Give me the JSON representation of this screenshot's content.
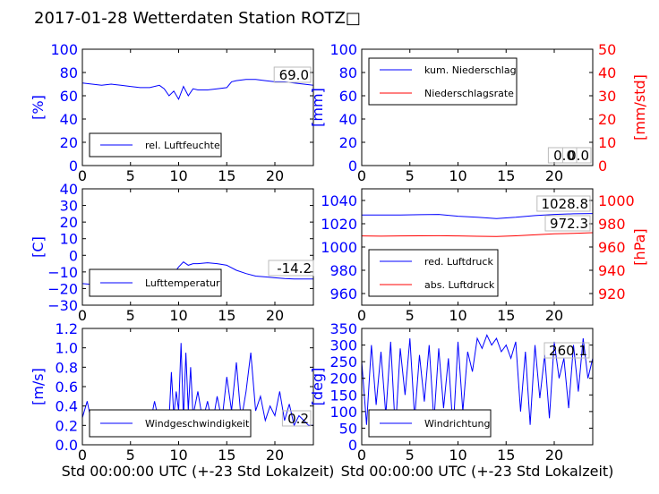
{
  "page": {
    "title": "2017-01-28 Wetterdaten Station ROTZ□"
  },
  "colors": {
    "primary": "#0000ff",
    "secondary": "#ff0000",
    "axis": "#000000"
  },
  "chart_data": [
    {
      "type": "line",
      "id": "humidity",
      "xlabel": "",
      "ylabel": "[%]",
      "xlim": [
        0,
        24
      ],
      "ylim": [
        0,
        100
      ],
      "xticks": [
        "0",
        "5",
        "10",
        "15",
        "20"
      ],
      "yticks": [
        "0",
        "20",
        "40",
        "60",
        "80",
        "100"
      ],
      "grid": false,
      "legend": "bottom-left",
      "annotations": [
        "69.0"
      ],
      "series": [
        {
          "name": "rel. Luftfeuchte",
          "color": "#0000ff",
          "axis": "left",
          "x": [
            0,
            1,
            2,
            3,
            4,
            5,
            6,
            7,
            8,
            8.5,
            9,
            9.5,
            10,
            10.5,
            11,
            11.5,
            12,
            13,
            14,
            15,
            15.5,
            16,
            17,
            18,
            19,
            20,
            21,
            22,
            23,
            24
          ],
          "values": [
            71,
            70,
            69,
            70,
            69,
            68,
            67,
            67,
            69,
            66,
            60,
            64,
            57,
            68,
            60,
            66,
            65,
            65,
            66,
            67,
            72,
            73,
            74,
            74,
            73,
            72,
            72,
            71,
            70,
            69
          ]
        }
      ]
    },
    {
      "type": "line",
      "id": "precipitation",
      "xlabel": "",
      "ylabel": "[mm]",
      "y2label": "[mm/std]",
      "xlim": [
        0,
        24
      ],
      "ylim": [
        0,
        100
      ],
      "y2lim": [
        0,
        50
      ],
      "xticks": [
        "0",
        "5",
        "10",
        "15",
        "20"
      ],
      "yticks": [
        "0",
        "20",
        "40",
        "60",
        "80",
        "100"
      ],
      "y2ticks": [
        "0",
        "10",
        "20",
        "30",
        "40",
        "50"
      ],
      "grid": false,
      "legend": "top-left",
      "annotations": [
        "0.0",
        "0.0"
      ],
      "series": [
        {
          "name": "kum. Niederschlag",
          "color": "#0000ff",
          "axis": "left",
          "x": [
            0,
            24
          ],
          "values": [
            0,
            0
          ]
        },
        {
          "name": "Niederschlagsrate",
          "color": "#ff0000",
          "axis": "right",
          "x": [
            0,
            24
          ],
          "values": [
            0,
            0
          ]
        }
      ]
    },
    {
      "type": "line",
      "id": "temperature",
      "xlabel": "",
      "ylabel": "[C]",
      "xlim": [
        0,
        24
      ],
      "ylim": [
        -30,
        40
      ],
      "xticks": [
        "0",
        "5",
        "10",
        "15",
        "20"
      ],
      "yticks": [
        "−30",
        "−20",
        "−10",
        "0",
        "10",
        "20",
        "30",
        "40"
      ],
      "grid": false,
      "legend": "bottom-left",
      "annotations": [
        "-14.2"
      ],
      "series": [
        {
          "name": "Lufttemperatur",
          "color": "#0000ff",
          "axis": "left",
          "x": [
            0,
            2,
            4,
            6,
            7,
            8,
            8.5,
            9,
            9.5,
            10,
            10.5,
            11,
            11.5,
            12,
            13,
            14,
            15,
            16,
            17,
            18,
            19,
            20,
            21,
            22,
            23,
            24
          ],
          "values": [
            -17,
            -18,
            -18.5,
            -18.5,
            -18,
            -17,
            -15.5,
            -14,
            -11,
            -7,
            -4,
            -6,
            -5,
            -5,
            -4.5,
            -5,
            -6,
            -9,
            -11,
            -12.5,
            -13,
            -13.5,
            -14,
            -14.2,
            -14.2,
            -14.2
          ]
        }
      ]
    },
    {
      "type": "line",
      "id": "pressure",
      "xlabel": "",
      "ylabel": "",
      "y2label": "[hPa]",
      "xlim": [
        0,
        24
      ],
      "ylim": [
        950,
        1050
      ],
      "y2lim": [
        910,
        1010
      ],
      "xticks": [
        "0",
        "5",
        "10",
        "15",
        "20"
      ],
      "yticks": [
        "960",
        "980",
        "1000",
        "1020",
        "1040"
      ],
      "y2ticks": [
        "920",
        "940",
        "960",
        "980",
        "1000"
      ],
      "grid": false,
      "legend": "bottom-left",
      "annotations": [
        "1028.8",
        "972.3"
      ],
      "series": [
        {
          "name": "red. Luftdruck",
          "color": "#0000ff",
          "axis": "left",
          "x": [
            0,
            2,
            4,
            6,
            8,
            10,
            12,
            14,
            16,
            18,
            20,
            22,
            24
          ],
          "values": [
            1027.5,
            1027.5,
            1027.5,
            1027.8,
            1028,
            1026.5,
            1025.5,
            1024.5,
            1025.5,
            1027,
            1028,
            1028.5,
            1028.8
          ]
        },
        {
          "name": "abs. Luftdruck",
          "color": "#ff0000",
          "axis": "right",
          "x": [
            0,
            2,
            4,
            6,
            8,
            10,
            12,
            14,
            16,
            18,
            20,
            22,
            24
          ],
          "values": [
            969.5,
            969.3,
            969.5,
            969.6,
            969.7,
            969.5,
            969.2,
            969.1,
            969.6,
            970.5,
            971.3,
            971.8,
            972.3
          ]
        }
      ]
    },
    {
      "type": "line",
      "id": "windspeed",
      "xlabel": "Std 00:00:00 UTC (+-23 Std Lokalzeit)",
      "ylabel": "[m/s]",
      "xlim": [
        0,
        24
      ],
      "ylim": [
        0,
        1.2
      ],
      "xticks": [
        "0",
        "5",
        "10",
        "15",
        "20"
      ],
      "yticks": [
        "0.0",
        "0.2",
        "0.4",
        "0.6",
        "0.8",
        "1.0",
        "1.2"
      ],
      "grid": false,
      "legend": "bottom-center",
      "annotations": [
        "0.2"
      ],
      "series": [
        {
          "name": "Windgeschwindigkeit",
          "color": "#0000ff",
          "axis": "left",
          "x": [
            0,
            0.5,
            1,
            1.5,
            2,
            2.5,
            3,
            3.5,
            4,
            4.5,
            5,
            5.5,
            6,
            6.5,
            7,
            7.5,
            8,
            8.5,
            9,
            9.25,
            9.5,
            9.75,
            10,
            10.25,
            10.5,
            10.75,
            11,
            11.25,
            11.5,
            12,
            12.5,
            13,
            13.5,
            14,
            14.5,
            15,
            15.5,
            16,
            16.5,
            17,
            17.5,
            18,
            18.5,
            19,
            19.5,
            20,
            20.5,
            21,
            21.5,
            22,
            22.5,
            23,
            23.5,
            24
          ],
          "values": [
            0.28,
            0.45,
            0.2,
            0.35,
            0.22,
            0.3,
            0.18,
            0.32,
            0.2,
            0.27,
            0.19,
            0.33,
            0.22,
            0.3,
            0.2,
            0.45,
            0.22,
            0.35,
            0.25,
            0.75,
            0.3,
            0.55,
            0.35,
            1.05,
            0.25,
            0.95,
            0.35,
            0.8,
            0.3,
            0.55,
            0.25,
            0.45,
            0.2,
            0.5,
            0.25,
            0.7,
            0.35,
            0.85,
            0.25,
            0.55,
            0.95,
            0.35,
            0.5,
            0.25,
            0.4,
            0.3,
            0.55,
            0.25,
            0.42,
            0.2,
            0.3,
            0.25,
            0.2,
            0.2
          ]
        }
      ]
    },
    {
      "type": "line",
      "id": "winddirection",
      "xlabel": "Std 00:00:00 UTC (+-23 Std Lokalzeit)",
      "ylabel": "[deg]",
      "xlim": [
        0,
        24
      ],
      "ylim": [
        0,
        350
      ],
      "xticks": [
        "0",
        "5",
        "10",
        "15",
        "20"
      ],
      "yticks": [
        "0",
        "50",
        "100",
        "150",
        "200",
        "250",
        "300",
        "350"
      ],
      "grid": false,
      "legend": "bottom-left",
      "annotations": [
        "260.1"
      ],
      "series": [
        {
          "name": "Windrichtung",
          "color": "#0000ff",
          "axis": "left",
          "x": [
            0,
            0.5,
            1,
            1.5,
            2,
            2.5,
            3,
            3.5,
            4,
            4.5,
            5,
            5.5,
            6,
            6.5,
            7,
            7.5,
            8,
            8.5,
            9,
            9.5,
            10,
            10.5,
            11,
            11.5,
            12,
            12.5,
            13,
            13.5,
            14,
            14.5,
            15,
            15.5,
            16,
            16.5,
            17,
            17.5,
            18,
            18.5,
            19,
            19.5,
            20,
            20.5,
            21,
            21.5,
            22,
            22.5,
            23,
            23.5,
            24
          ],
          "values": [
            250,
            60,
            300,
            120,
            280,
            90,
            310,
            40,
            290,
            150,
            320,
            80,
            270,
            130,
            300,
            70,
            290,
            110,
            260,
            40,
            310,
            100,
            280,
            220,
            320,
            290,
            330,
            300,
            320,
            280,
            300,
            260,
            310,
            100,
            280,
            60,
            300,
            140,
            270,
            80,
            310,
            200,
            260,
            110,
            300,
            160,
            320,
            200,
            260
          ]
        }
      ]
    }
  ]
}
